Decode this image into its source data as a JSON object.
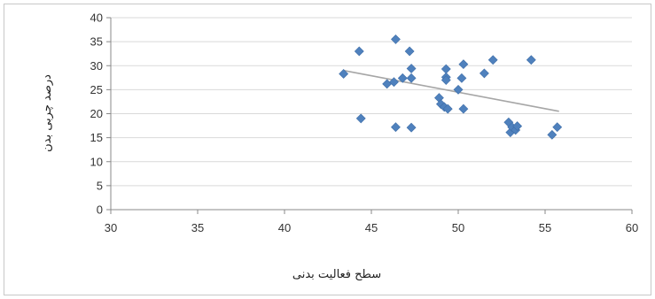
{
  "chart_data": {
    "type": "scatter",
    "xlabel": "سطح فعالیت بدنی",
    "ylabel": "درصد چربی بدن",
    "xlim": [
      30,
      60
    ],
    "ylim": [
      0,
      40
    ],
    "x_ticks": [
      30,
      35,
      40,
      45,
      50,
      55,
      60
    ],
    "y_ticks": [
      0,
      5,
      10,
      15,
      20,
      25,
      30,
      35,
      40
    ],
    "grid": "horizontal",
    "marker": "diamond",
    "marker_color": "#4F81BD",
    "trendline_color": "#A6A6A6",
    "points": [
      {
        "x": 43.4,
        "y": 28.3
      },
      {
        "x": 44.3,
        "y": 33.0
      },
      {
        "x": 44.4,
        "y": 19.0
      },
      {
        "x": 45.9,
        "y": 26.2
      },
      {
        "x": 46.3,
        "y": 26.6
      },
      {
        "x": 46.4,
        "y": 35.5
      },
      {
        "x": 46.4,
        "y": 17.2
      },
      {
        "x": 46.8,
        "y": 27.4
      },
      {
        "x": 47.2,
        "y": 33.0
      },
      {
        "x": 47.3,
        "y": 29.4
      },
      {
        "x": 47.3,
        "y": 27.4
      },
      {
        "x": 47.3,
        "y": 17.1
      },
      {
        "x": 48.9,
        "y": 23.3
      },
      {
        "x": 49.0,
        "y": 22.0
      },
      {
        "x": 49.2,
        "y": 21.4
      },
      {
        "x": 49.3,
        "y": 29.3
      },
      {
        "x": 49.3,
        "y": 27.6
      },
      {
        "x": 49.3,
        "y": 27.0
      },
      {
        "x": 49.4,
        "y": 21.0
      },
      {
        "x": 50.0,
        "y": 25.0
      },
      {
        "x": 50.2,
        "y": 27.4
      },
      {
        "x": 50.3,
        "y": 30.3
      },
      {
        "x": 50.3,
        "y": 21.0
      },
      {
        "x": 51.5,
        "y": 28.4
      },
      {
        "x": 52.0,
        "y": 31.2
      },
      {
        "x": 52.9,
        "y": 18.2
      },
      {
        "x": 53.0,
        "y": 16.1
      },
      {
        "x": 53.1,
        "y": 17.2
      },
      {
        "x": 53.3,
        "y": 16.6
      },
      {
        "x": 53.4,
        "y": 17.4
      },
      {
        "x": 54.2,
        "y": 31.2
      },
      {
        "x": 55.4,
        "y": 15.6
      },
      {
        "x": 55.7,
        "y": 17.2
      }
    ],
    "trendline": {
      "x": [
        43.4,
        55.8
      ],
      "y": [
        29.0,
        20.5
      ]
    }
  }
}
